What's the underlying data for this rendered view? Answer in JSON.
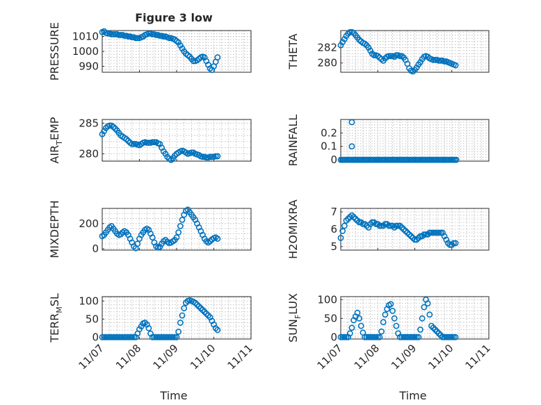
{
  "figure_title": "Figure 3 low",
  "xlabel": "Time",
  "x_tick_labels": [
    "11/07",
    "11/08",
    "11/09",
    "11/10",
    "11/11"
  ],
  "marker_color": "#0072BD",
  "chart_data": [
    {
      "id": "pressure",
      "type": "scatter",
      "ylabel": "PRESSURE",
      "ylabel_sub": "",
      "xlim": [
        0,
        4
      ],
      "ylim": [
        986,
        1014
      ],
      "yticks": [
        990,
        1000,
        1010
      ],
      "ytick_labels": [
        "990",
        "1000",
        "1010"
      ],
      "x": [
        0.0,
        0.05,
        0.1,
        0.15,
        0.2,
        0.25,
        0.3,
        0.35,
        0.4,
        0.45,
        0.5,
        0.55,
        0.6,
        0.65,
        0.7,
        0.75,
        0.8,
        0.85,
        0.9,
        0.95,
        1.0,
        1.05,
        1.1,
        1.15,
        1.2,
        1.25,
        1.3,
        1.35,
        1.4,
        1.45,
        1.5,
        1.55,
        1.6,
        1.65,
        1.7,
        1.75,
        1.8,
        1.85,
        1.9,
        1.95,
        2.0,
        2.05,
        2.1,
        2.15,
        2.2,
        2.25,
        2.3,
        2.35,
        2.4,
        2.45,
        2.5,
        2.55,
        2.6,
        2.65,
        2.7,
        2.75,
        2.8,
        2.85,
        2.9,
        2.95,
        3.0,
        3.05,
        3.1
      ],
      "y": [
        1013,
        1013.5,
        1012.5,
        1012,
        1012,
        1011.5,
        1011.5,
        1011.5,
        1011.5,
        1011,
        1011,
        1011,
        1010.5,
        1010.5,
        1010,
        1010,
        1009.5,
        1009.5,
        1009,
        1009,
        1009,
        1009.5,
        1010,
        1011,
        1011.5,
        1012,
        1012,
        1011.5,
        1011.5,
        1011,
        1011,
        1010.5,
        1010.5,
        1010,
        1010,
        1009.5,
        1009,
        1009,
        1008.5,
        1008,
        1007,
        1006,
        1004,
        1002,
        1000,
        998.5,
        997.5,
        996.5,
        995,
        993.5,
        993.5,
        994,
        995,
        996,
        996.5,
        996,
        993.5,
        991,
        988.5,
        987.5,
        990,
        993,
        996
      ]
    },
    {
      "id": "theta",
      "type": "scatter",
      "ylabel": "THETA",
      "ylabel_sub": "",
      "xlim": [
        0,
        4
      ],
      "ylim": [
        278.8,
        284.2
      ],
      "yticks": [
        280,
        282
      ],
      "ytick_labels": [
        "280",
        "282"
      ],
      "x": [
        0.0,
        0.05,
        0.1,
        0.15,
        0.2,
        0.25,
        0.3,
        0.35,
        0.4,
        0.45,
        0.5,
        0.55,
        0.6,
        0.65,
        0.7,
        0.75,
        0.8,
        0.85,
        0.9,
        0.95,
        1.0,
        1.05,
        1.1,
        1.15,
        1.2,
        1.25,
        1.3,
        1.35,
        1.4,
        1.45,
        1.5,
        1.55,
        1.6,
        1.65,
        1.7,
        1.75,
        1.8,
        1.85,
        1.9,
        1.95,
        2.0,
        2.05,
        2.1,
        2.15,
        2.2,
        2.25,
        2.3,
        2.35,
        2.4,
        2.45,
        2.5,
        2.55,
        2.6,
        2.65,
        2.7,
        2.75,
        2.8,
        2.85,
        2.9,
        2.95,
        3.0,
        3.05,
        3.1
      ],
      "y": [
        282.3,
        282.7,
        283.1,
        283.5,
        283.8,
        284.0,
        284.0,
        283.9,
        283.6,
        283.3,
        283.0,
        282.8,
        282.6,
        282.5,
        282.3,
        282.0,
        281.6,
        281.2,
        281.0,
        281.0,
        280.9,
        280.7,
        280.5,
        280.3,
        280.6,
        280.8,
        280.9,
        280.9,
        280.9,
        280.8,
        281.0,
        281.0,
        280.9,
        280.9,
        280.7,
        280.4,
        279.9,
        279.3,
        279.0,
        278.9,
        279.1,
        279.4,
        279.8,
        280.1,
        280.5,
        280.8,
        280.9,
        280.8,
        280.6,
        280.5,
        280.4,
        280.4,
        280.4,
        280.3,
        280.3,
        280.3,
        280.2,
        280.2,
        280.1,
        280.0,
        279.9,
        279.8,
        279.7
      ]
    },
    {
      "id": "air_temp",
      "type": "scatter",
      "ylabel": "AIR",
      "ylabel_sub": "T",
      "ylabel_tail": "EMP",
      "xlim": [
        0,
        4
      ],
      "ylim": [
        278.8,
        285.6
      ],
      "yticks": [
        280,
        285
      ],
      "ytick_labels": [
        "280",
        "285"
      ],
      "x": [
        0.0,
        0.05,
        0.1,
        0.15,
        0.2,
        0.25,
        0.3,
        0.35,
        0.4,
        0.45,
        0.5,
        0.55,
        0.6,
        0.65,
        0.7,
        0.75,
        0.8,
        0.85,
        0.9,
        0.95,
        1.0,
        1.05,
        1.1,
        1.15,
        1.2,
        1.25,
        1.3,
        1.35,
        1.4,
        1.45,
        1.5,
        1.55,
        1.6,
        1.65,
        1.7,
        1.75,
        1.8,
        1.85,
        1.9,
        1.95,
        2.0,
        2.05,
        2.1,
        2.15,
        2.2,
        2.25,
        2.3,
        2.35,
        2.4,
        2.45,
        2.5,
        2.55,
        2.6,
        2.65,
        2.7,
        2.75,
        2.8,
        2.85,
        2.9,
        2.95,
        3.0,
        3.05,
        3.1
      ],
      "y": [
        283.2,
        283.7,
        284.2,
        284.5,
        284.6,
        284.6,
        284.4,
        284.1,
        283.8,
        283.4,
        283.0,
        282.8,
        282.6,
        282.4,
        282.1,
        281.8,
        281.6,
        281.6,
        281.6,
        281.5,
        281.4,
        281.6,
        281.8,
        281.9,
        281.8,
        281.8,
        281.8,
        281.9,
        281.9,
        281.9,
        281.7,
        281.6,
        281.0,
        280.4,
        280.0,
        279.5,
        279.2,
        279.0,
        279.3,
        279.7,
        280.0,
        280.2,
        280.4,
        280.5,
        280.4,
        280.2,
        280.0,
        280.1,
        280.2,
        280.2,
        280.0,
        279.9,
        279.8,
        279.6,
        279.5,
        279.5,
        279.4,
        279.4,
        279.5,
        279.5,
        279.5,
        279.6,
        279.6
      ]
    },
    {
      "id": "rainfall",
      "type": "scatter",
      "ylabel": "RAINFALL",
      "ylabel_sub": "",
      "xlim": [
        0,
        4
      ],
      "ylim": [
        -0.01,
        0.3
      ],
      "yticks": [
        0,
        0.1,
        0.2
      ],
      "ytick_labels": [
        "0",
        "0.1",
        "0.2"
      ],
      "x": [
        0.0,
        0.04,
        0.08,
        0.12,
        0.16,
        0.2,
        0.24,
        0.28,
        0.32,
        0.36,
        0.4,
        0.44,
        0.48,
        0.52,
        0.56,
        0.6,
        0.64,
        0.68,
        0.72,
        0.76,
        0.8,
        0.84,
        0.88,
        0.92,
        0.96,
        1.0,
        1.04,
        1.08,
        1.12,
        1.16,
        1.2,
        1.24,
        1.28,
        1.32,
        1.36,
        1.4,
        1.44,
        1.48,
        1.52,
        1.56,
        1.6,
        1.64,
        1.68,
        1.72,
        1.76,
        1.8,
        1.84,
        1.88,
        1.92,
        1.96,
        2.0,
        2.04,
        2.08,
        2.12,
        2.16,
        2.2,
        2.24,
        2.28,
        2.32,
        2.36,
        2.4,
        2.44,
        2.48,
        2.52,
        2.56,
        2.6,
        2.64,
        2.68,
        2.72,
        2.76,
        2.8,
        2.84,
        2.88,
        2.92,
        2.96,
        3.0,
        3.04,
        3.08,
        3.12,
        0.3,
        0.3
      ],
      "y": [
        0,
        0,
        0,
        0,
        0,
        0,
        0,
        0,
        0,
        0,
        0,
        0,
        0,
        0,
        0,
        0,
        0,
        0,
        0,
        0,
        0,
        0,
        0,
        0,
        0,
        0,
        0,
        0,
        0,
        0,
        0,
        0,
        0,
        0,
        0,
        0,
        0,
        0,
        0,
        0,
        0,
        0,
        0,
        0,
        0,
        0,
        0,
        0,
        0,
        0,
        0,
        0,
        0,
        0,
        0,
        0,
        0,
        0,
        0,
        0,
        0,
        0,
        0,
        0,
        0,
        0,
        0,
        0,
        0,
        0,
        0,
        0,
        0,
        0,
        0,
        0,
        0,
        0,
        0,
        0.1,
        0.28
      ]
    },
    {
      "id": "mixdepth",
      "type": "scatter",
      "ylabel": "MIXDEPTH",
      "ylabel_sub": "",
      "xlim": [
        0,
        4
      ],
      "ylim": [
        -10,
        320
      ],
      "yticks": [
        0,
        200
      ],
      "ytick_labels": [
        "0",
        "200"
      ],
      "x": [
        0.0,
        0.05,
        0.1,
        0.15,
        0.2,
        0.25,
        0.3,
        0.35,
        0.4,
        0.45,
        0.5,
        0.55,
        0.6,
        0.65,
        0.7,
        0.75,
        0.8,
        0.85,
        0.9,
        0.95,
        1.0,
        1.05,
        1.1,
        1.15,
        1.2,
        1.25,
        1.3,
        1.35,
        1.4,
        1.45,
        1.5,
        1.55,
        1.6,
        1.65,
        1.7,
        1.75,
        1.8,
        1.85,
        1.9,
        1.95,
        2.0,
        2.05,
        2.1,
        2.15,
        2.2,
        2.25,
        2.3,
        2.35,
        2.4,
        2.45,
        2.5,
        2.55,
        2.6,
        2.65,
        2.7,
        2.75,
        2.8,
        2.85,
        2.9,
        2.95,
        3.0,
        3.05,
        3.1
      ],
      "y": [
        100,
        110,
        130,
        150,
        170,
        180,
        160,
        140,
        120,
        110,
        115,
        130,
        140,
        130,
        110,
        80,
        50,
        20,
        5,
        40,
        80,
        110,
        130,
        150,
        160,
        150,
        120,
        90,
        50,
        20,
        10,
        15,
        40,
        60,
        70,
        55,
        45,
        50,
        60,
        70,
        90,
        130,
        180,
        230,
        270,
        300,
        310,
        290,
        270,
        250,
        230,
        200,
        170,
        140,
        110,
        80,
        60,
        50,
        60,
        75,
        85,
        90,
        80
      ]
    },
    {
      "id": "h2omixra",
      "type": "scatter",
      "ylabel": "H2OMIXRA",
      "ylabel_sub": "",
      "xlim": [
        0,
        4
      ],
      "ylim": [
        4.8,
        7.2
      ],
      "yticks": [
        5,
        6,
        7
      ],
      "ytick_labels": [
        "5",
        "6",
        "7"
      ],
      "x": [
        0.0,
        0.05,
        0.1,
        0.15,
        0.2,
        0.25,
        0.3,
        0.35,
        0.4,
        0.45,
        0.5,
        0.55,
        0.6,
        0.65,
        0.7,
        0.75,
        0.8,
        0.85,
        0.9,
        0.95,
        1.0,
        1.05,
        1.1,
        1.15,
        1.2,
        1.25,
        1.3,
        1.35,
        1.4,
        1.45,
        1.5,
        1.55,
        1.6,
        1.65,
        1.7,
        1.75,
        1.8,
        1.85,
        1.9,
        1.95,
        2.0,
        2.05,
        2.1,
        2.15,
        2.2,
        2.25,
        2.3,
        2.35,
        2.4,
        2.45,
        2.5,
        2.55,
        2.6,
        2.65,
        2.7,
        2.75,
        2.8,
        2.85,
        2.9,
        2.95,
        3.0,
        3.05,
        3.1
      ],
      "y": [
        5.5,
        5.9,
        6.2,
        6.5,
        6.6,
        6.7,
        6.8,
        6.7,
        6.6,
        6.5,
        6.4,
        6.4,
        6.3,
        6.3,
        6.2,
        6.1,
        6.3,
        6.4,
        6.4,
        6.3,
        6.3,
        6.2,
        6.2,
        6.2,
        6.3,
        6.3,
        6.2,
        6.2,
        6.2,
        6.1,
        6.2,
        6.2,
        6.2,
        6.1,
        6.0,
        5.9,
        5.8,
        5.7,
        5.6,
        5.5,
        5.4,
        5.4,
        5.5,
        5.6,
        5.6,
        5.7,
        5.7,
        5.7,
        5.8,
        5.8,
        5.8,
        5.8,
        5.8,
        5.8,
        5.8,
        5.8,
        5.6,
        5.4,
        5.2,
        5.1,
        5.1,
        5.2,
        5.2
      ]
    },
    {
      "id": "terr_msl",
      "type": "scatter",
      "ylabel": "TERR",
      "ylabel_sub": "M",
      "ylabel_tail": "SL",
      "xlim": [
        0,
        4
      ],
      "ylim": [
        -5,
        112
      ],
      "yticks": [
        0,
        50,
        100
      ],
      "ytick_labels": [
        "0",
        "50",
        "100"
      ],
      "x": [
        0.0,
        0.05,
        0.1,
        0.15,
        0.2,
        0.25,
        0.3,
        0.35,
        0.4,
        0.45,
        0.5,
        0.55,
        0.6,
        0.65,
        0.7,
        0.75,
        0.8,
        0.85,
        0.9,
        0.95,
        1.0,
        1.05,
        1.1,
        1.15,
        1.2,
        1.25,
        1.3,
        1.35,
        1.4,
        1.45,
        1.5,
        1.55,
        1.6,
        1.65,
        1.7,
        1.75,
        1.8,
        1.85,
        1.9,
        1.95,
        2.0,
        2.05,
        2.1,
        2.15,
        2.2,
        2.25,
        2.3,
        2.35,
        2.4,
        2.45,
        2.5,
        2.55,
        2.6,
        2.65,
        2.7,
        2.75,
        2.8,
        2.85,
        2.9,
        2.95,
        3.0,
        3.05,
        3.1
      ],
      "y": [
        0,
        0,
        0,
        0,
        0,
        0,
        0,
        0,
        0,
        0,
        0,
        0,
        0,
        0,
        0,
        0,
        0,
        0,
        0,
        10,
        22,
        30,
        38,
        40,
        35,
        25,
        10,
        0,
        0,
        0,
        0,
        0,
        0,
        0,
        0,
        0,
        0,
        0,
        0,
        0,
        0,
        15,
        40,
        60,
        80,
        95,
        100,
        102,
        100,
        98,
        95,
        90,
        85,
        80,
        75,
        70,
        65,
        60,
        55,
        45,
        35,
        25,
        20
      ]
    },
    {
      "id": "sun_flux",
      "type": "scatter",
      "ylabel": "SUN",
      "ylabel_sub": "F",
      "ylabel_tail": "LUX",
      "xlim": [
        0,
        4
      ],
      "ylim": [
        -5,
        108
      ],
      "yticks": [
        0,
        50,
        100
      ],
      "ytick_labels": [
        "0",
        "50",
        "100"
      ],
      "x": [
        0.0,
        0.05,
        0.1,
        0.15,
        0.2,
        0.25,
        0.3,
        0.35,
        0.4,
        0.45,
        0.5,
        0.55,
        0.6,
        0.65,
        0.7,
        0.75,
        0.8,
        0.85,
        0.9,
        0.95,
        1.0,
        1.05,
        1.1,
        1.15,
        1.2,
        1.25,
        1.3,
        1.35,
        1.4,
        1.45,
        1.5,
        1.55,
        1.6,
        1.65,
        1.7,
        1.75,
        1.8,
        1.85,
        1.9,
        1.95,
        2.0,
        2.05,
        2.1,
        2.15,
        2.2,
        2.25,
        2.3,
        2.35,
        2.4,
        2.45,
        2.5,
        2.55,
        2.6,
        2.65,
        2.7,
        2.75,
        2.8,
        2.85,
        2.9,
        2.95,
        3.0,
        3.05,
        3.1
      ],
      "y": [
        0,
        0,
        0,
        0,
        0,
        10,
        25,
        45,
        55,
        65,
        50,
        30,
        12,
        0,
        0,
        0,
        0,
        0,
        0,
        0,
        0,
        0,
        15,
        40,
        60,
        75,
        85,
        88,
        70,
        50,
        30,
        10,
        0,
        0,
        0,
        0,
        0,
        0,
        0,
        0,
        0,
        0,
        0,
        20,
        50,
        80,
        100,
        90,
        60,
        30,
        25,
        20,
        15,
        10,
        5,
        0,
        0,
        0,
        0,
        0,
        0,
        0,
        0
      ]
    }
  ]
}
